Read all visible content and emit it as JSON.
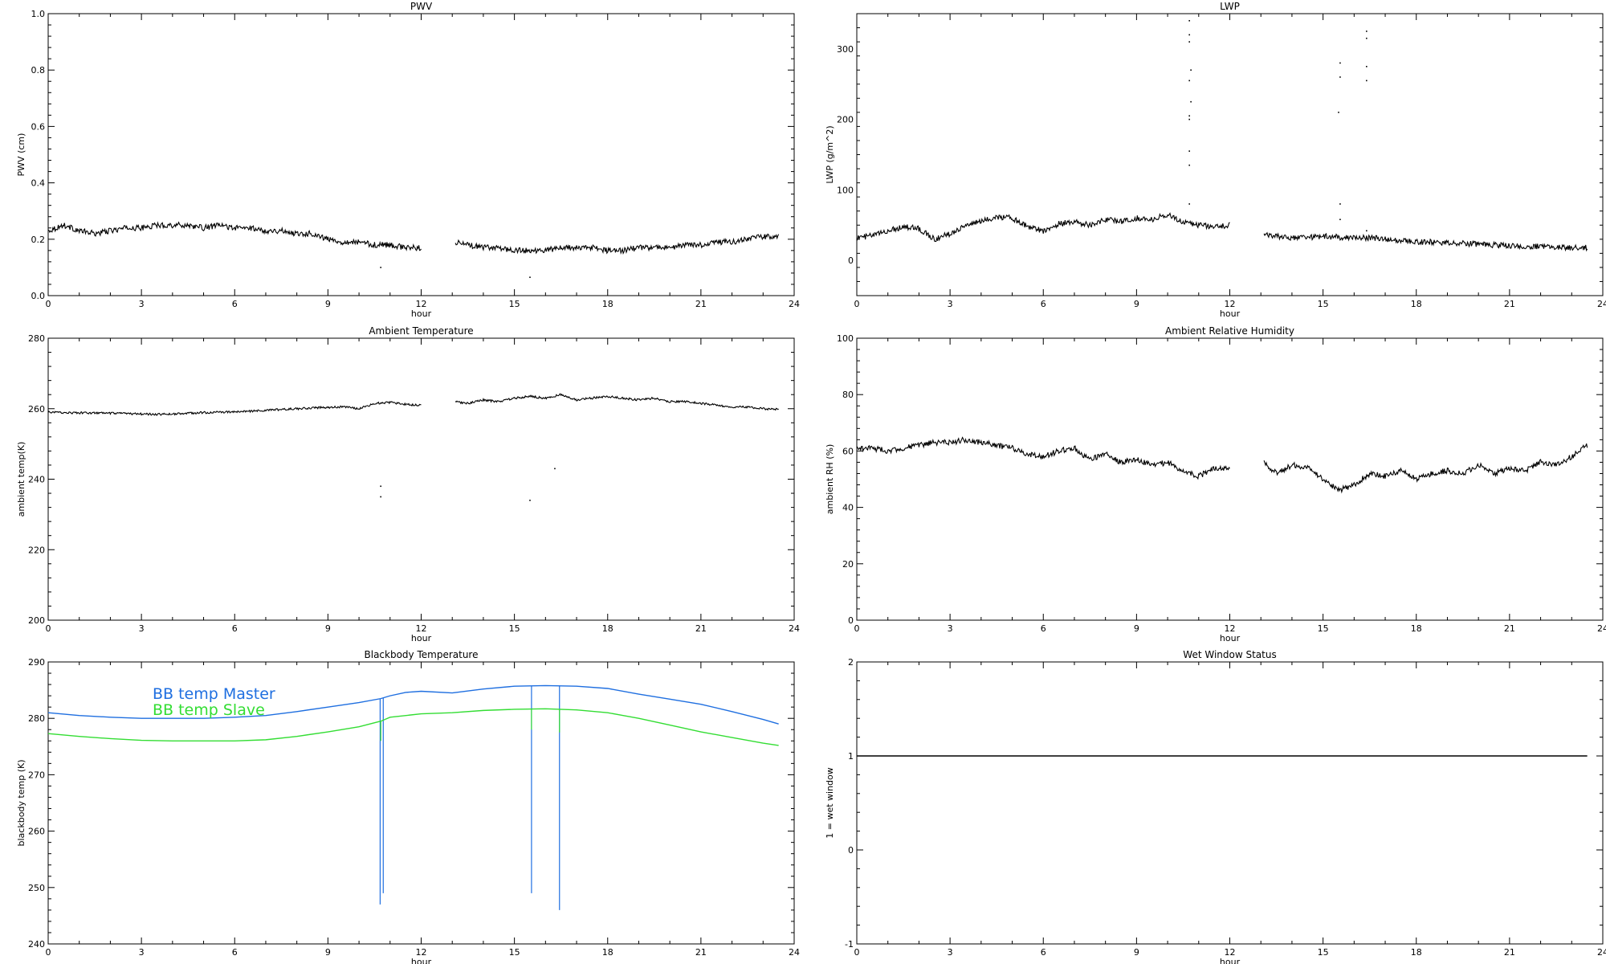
{
  "figure": {
    "background": "#ffffff"
  },
  "chart_data": [
    {
      "id": "pwv",
      "type": "line",
      "title": "PWV",
      "xlabel": "hour",
      "ylabel": "PWV (cm)",
      "xlim": [
        0,
        24
      ],
      "ylim": [
        0,
        1.0
      ],
      "xticks": [
        0,
        3,
        6,
        9,
        12,
        15,
        18,
        21,
        24
      ],
      "yticks": [
        0.0,
        0.2,
        0.4,
        0.6,
        0.8,
        1.0
      ],
      "ytick_labels": [
        "0.0",
        "0.2",
        "0.4",
        "0.6",
        "0.8",
        "1.0"
      ],
      "series": [
        {
          "color": "#000000",
          "noise": 0.01,
          "segments": [
            {
              "x": [
                0,
                0.5,
                1,
                1.5,
                2,
                2.5,
                3,
                3.5,
                4,
                4.5,
                5,
                5.5,
                6,
                6.5,
                7,
                7.5,
                8,
                8.5,
                9,
                9.5,
                10,
                10.5,
                11,
                11.5,
                12
              ],
              "y": [
                0.23,
                0.25,
                0.23,
                0.22,
                0.23,
                0.24,
                0.24,
                0.25,
                0.25,
                0.25,
                0.24,
                0.25,
                0.24,
                0.24,
                0.23,
                0.23,
                0.22,
                0.22,
                0.2,
                0.19,
                0.19,
                0.18,
                0.18,
                0.17,
                0.17
              ]
            },
            {
              "x": [
                13.1,
                13.5,
                14,
                14.5,
                15,
                15.5,
                16,
                16.5,
                17,
                17.5,
                18,
                18.5,
                19,
                19.5,
                20,
                20.5,
                21,
                21.5,
                22,
                22.5,
                23,
                23.5
              ],
              "y": [
                0.19,
                0.18,
                0.17,
                0.17,
                0.16,
                0.16,
                0.16,
                0.17,
                0.17,
                0.17,
                0.16,
                0.16,
                0.17,
                0.17,
                0.17,
                0.18,
                0.18,
                0.19,
                0.19,
                0.2,
                0.21,
                0.21
              ]
            }
          ]
        }
      ],
      "outliers": [
        {
          "x": 10.7,
          "y": 0.1
        },
        {
          "x": 15.5,
          "y": 0.065
        }
      ]
    },
    {
      "id": "lwp",
      "type": "line",
      "title": "LWP",
      "xlabel": "hour",
      "ylabel": "LWP (g/m^2)",
      "xlim": [
        0,
        24
      ],
      "ylim": [
        -50,
        350
      ],
      "xticks": [
        0,
        3,
        6,
        9,
        12,
        15,
        18,
        21,
        24
      ],
      "yticks": [
        0,
        100,
        200,
        300
      ],
      "ytick_labels": [
        "0",
        "100",
        "200",
        "300"
      ],
      "series": [
        {
          "color": "#000000",
          "noise": 4,
          "segments": [
            {
              "x": [
                0,
                0.5,
                1,
                1.5,
                2,
                2.5,
                3,
                3.5,
                4,
                4.5,
                5,
                5.5,
                6,
                6.5,
                7,
                7.5,
                8,
                8.5,
                9,
                9.5,
                10,
                10.5,
                11,
                11.5,
                12
              ],
              "y": [
                32,
                35,
                42,
                48,
                45,
                30,
                38,
                50,
                55,
                62,
                60,
                48,
                42,
                52,
                55,
                50,
                58,
                55,
                60,
                58,
                65,
                55,
                50,
                48,
                50
              ]
            },
            {
              "x": [
                13.1,
                13.5,
                14,
                14.5,
                15,
                15.5,
                16,
                16.5,
                17,
                17.5,
                18,
                18.5,
                19,
                19.5,
                20,
                20.5,
                21,
                21.5,
                22,
                22.5,
                23,
                23.5
              ],
              "y": [
                38,
                34,
                32,
                33,
                34,
                33,
                32,
                32,
                30,
                28,
                26,
                26,
                25,
                24,
                23,
                22,
                21,
                20,
                20,
                19,
                18,
                18
              ]
            }
          ]
        }
      ],
      "outliers": [
        {
          "x": 10.7,
          "y": 340
        },
        {
          "x": 10.7,
          "y": 320
        },
        {
          "x": 10.7,
          "y": 310
        },
        {
          "x": 10.75,
          "y": 270
        },
        {
          "x": 10.7,
          "y": 255
        },
        {
          "x": 10.75,
          "y": 225
        },
        {
          "x": 10.7,
          "y": 205
        },
        {
          "x": 10.7,
          "y": 200
        },
        {
          "x": 10.7,
          "y": 155
        },
        {
          "x": 10.7,
          "y": 135
        },
        {
          "x": 10.7,
          "y": 80
        },
        {
          "x": 15.55,
          "y": 280
        },
        {
          "x": 15.55,
          "y": 260
        },
        {
          "x": 15.5,
          "y": 210
        },
        {
          "x": 15.55,
          "y": 80
        },
        {
          "x": 15.55,
          "y": 58
        },
        {
          "x": 16.4,
          "y": 325
        },
        {
          "x": 16.4,
          "y": 315
        },
        {
          "x": 16.4,
          "y": 275
        },
        {
          "x": 16.4,
          "y": 255
        },
        {
          "x": 16.4,
          "y": 42
        }
      ]
    },
    {
      "id": "ambient-temperature",
      "type": "line",
      "title": "Ambient Temperature",
      "xlabel": "hour",
      "ylabel": "ambient temp(K)",
      "xlim": [
        0,
        24
      ],
      "ylim": [
        200,
        280
      ],
      "xticks": [
        0,
        3,
        6,
        9,
        12,
        15,
        18,
        21,
        24
      ],
      "yticks": [
        200,
        220,
        240,
        260,
        280
      ],
      "ytick_labels": [
        "200",
        "220",
        "240",
        "260",
        "280"
      ],
      "series": [
        {
          "color": "#000000",
          "noise": 0.3,
          "segments": [
            {
              "x": [
                0,
                0.5,
                1,
                1.5,
                2,
                2.5,
                3,
                3.5,
                4,
                4.5,
                5,
                5.5,
                6,
                6.5,
                7,
                7.5,
                8,
                8.5,
                9,
                9.5,
                10,
                10.5,
                11,
                11.5,
                12
              ],
              "y": [
                259.0,
                258.9,
                258.8,
                258.8,
                258.7,
                258.6,
                258.5,
                258.4,
                258.5,
                258.7,
                258.9,
                259.0,
                259.1,
                259.3,
                259.5,
                259.8,
                260.0,
                260.2,
                260.4,
                260.5,
                260.0,
                261.5,
                261.8,
                261.2,
                261.0
              ]
            },
            {
              "x": [
                13.1,
                13.5,
                14,
                14.5,
                15,
                15.5,
                16,
                16.5,
                17,
                17.5,
                18,
                18.5,
                19,
                19.5,
                20,
                20.5,
                21,
                21.5,
                22,
                22.5,
                23,
                23.5
              ],
              "y": [
                262.0,
                261.5,
                262.5,
                262.0,
                263.0,
                263.5,
                263.0,
                264.0,
                262.5,
                263.0,
                263.5,
                263.0,
                262.5,
                263.0,
                262.0,
                262.0,
                261.5,
                261.0,
                260.5,
                260.5,
                260.0,
                259.8
              ]
            }
          ]
        }
      ],
      "outliers": [
        {
          "x": 10.7,
          "y": 238
        },
        {
          "x": 10.7,
          "y": 235
        },
        {
          "x": 15.5,
          "y": 234
        },
        {
          "x": 16.3,
          "y": 243
        }
      ]
    },
    {
      "id": "ambient-relative-humidity",
      "type": "line",
      "title": "Ambient Relative Humidity",
      "xlabel": "hour",
      "ylabel": "ambient RH (%)",
      "xlim": [
        0,
        24
      ],
      "ylim": [
        0,
        100
      ],
      "xticks": [
        0,
        3,
        6,
        9,
        12,
        15,
        18,
        21,
        24
      ],
      "yticks": [
        0,
        20,
        40,
        60,
        80,
        100
      ],
      "ytick_labels": [
        "0",
        "20",
        "40",
        "60",
        "80",
        "100"
      ],
      "series": [
        {
          "color": "#000000",
          "noise": 1.0,
          "segments": [
            {
              "x": [
                0,
                0.5,
                1,
                1.5,
                2,
                2.5,
                3,
                3.5,
                4,
                4.5,
                5,
                5.5,
                6,
                6.5,
                7,
                7.5,
                8,
                8.5,
                9,
                9.5,
                10,
                10.5,
                11,
                11.5,
                12
              ],
              "y": [
                61,
                61,
                60,
                61,
                62,
                63,
                63,
                64,
                63,
                62,
                61,
                59,
                58,
                60,
                61,
                57,
                59,
                56,
                57,
                55,
                56,
                53,
                51,
                54,
                54
              ]
            },
            {
              "x": [
                13.1,
                13.5,
                14,
                14.5,
                15,
                15.5,
                16,
                16.5,
                17,
                17.5,
                18,
                18.5,
                19,
                19.5,
                20,
                20.5,
                21,
                21.5,
                22,
                22.5,
                23,
                23.5
              ],
              "y": [
                56,
                52,
                55,
                54,
                50,
                46,
                48,
                52,
                51,
                53,
                50,
                52,
                53,
                52,
                55,
                52,
                54,
                53,
                56,
                55,
                58,
                62
              ]
            }
          ]
        }
      ],
      "outliers": []
    },
    {
      "id": "blackbody-temperature",
      "type": "line",
      "title": "Blackbody Temperature",
      "xlabel": "hour",
      "ylabel": "blackbody temp (K)",
      "xlim": [
        0,
        24
      ],
      "ylim": [
        240,
        290
      ],
      "xticks": [
        0,
        3,
        6,
        9,
        12,
        15,
        18,
        21,
        24
      ],
      "yticks": [
        240,
        250,
        260,
        270,
        280,
        290
      ],
      "ytick_labels": [
        "240",
        "250",
        "260",
        "270",
        "280",
        "290"
      ],
      "series": [
        {
          "name": "BB temp Master",
          "color": "#1f6fe0",
          "noise": 0,
          "segments": [
            {
              "x": [
                0,
                1,
                2,
                3,
                4,
                5,
                6,
                7,
                8,
                9,
                10,
                10.7,
                11,
                11.5,
                12,
                13,
                14,
                15,
                16,
                17,
                18,
                19,
                20,
                21,
                22,
                23,
                23.5
              ],
              "y": [
                281.0,
                280.5,
                280.2,
                280.0,
                280.0,
                280.0,
                280.2,
                280.5,
                281.2,
                282.0,
                282.8,
                283.5,
                284.0,
                284.6,
                284.8,
                284.5,
                285.2,
                285.7,
                285.8,
                285.7,
                285.3,
                284.3,
                283.4,
                282.5,
                281.2,
                279.8,
                279.0
              ]
            }
          ],
          "spikes": [
            {
              "x": 10.68,
              "y": 247.0
            },
            {
              "x": 10.78,
              "y": 249.0
            },
            {
              "x": 15.55,
              "y": 249.0
            },
            {
              "x": 16.45,
              "y": 246.0
            }
          ]
        },
        {
          "name": "BB temp Slave",
          "color": "#33dd33",
          "noise": 0,
          "segments": [
            {
              "x": [
                0,
                1,
                2,
                3,
                4,
                5,
                6,
                7,
                8,
                9,
                10,
                10.7,
                11,
                12,
                13,
                14,
                15,
                16,
                17,
                18,
                19,
                20,
                21,
                22,
                23,
                23.5
              ],
              "y": [
                277.3,
                276.8,
                276.4,
                276.1,
                276.0,
                276.0,
                276.0,
                276.2,
                276.8,
                277.6,
                278.5,
                279.5,
                280.2,
                280.8,
                281.0,
                281.4,
                281.6,
                281.7,
                281.5,
                281.0,
                280.0,
                278.8,
                277.6,
                276.6,
                275.6,
                275.2
              ]
            }
          ],
          "spikes": [
            {
              "x": 10.7,
              "y": 276.0
            },
            {
              "x": 15.55,
              "y": 278.0
            },
            {
              "x": 16.45,
              "y": 277.5
            }
          ]
        }
      ],
      "outliers": []
    },
    {
      "id": "wet-window-status",
      "type": "line",
      "title": "Wet Window Status",
      "xlabel": "hour",
      "ylabel": "1 = wet window",
      "xlim": [
        0,
        24
      ],
      "ylim": [
        -1,
        2
      ],
      "xticks": [
        0,
        3,
        6,
        9,
        12,
        15,
        18,
        21,
        24
      ],
      "yticks": [
        -1,
        0,
        1,
        2
      ],
      "ytick_labels": [
        "-1",
        "0",
        "1",
        "2"
      ],
      "series": [
        {
          "color": "#000000",
          "noise": 0,
          "segments": [
            {
              "x": [
                0,
                23.5
              ],
              "y": [
                1,
                1
              ]
            }
          ]
        }
      ],
      "outliers": []
    }
  ]
}
